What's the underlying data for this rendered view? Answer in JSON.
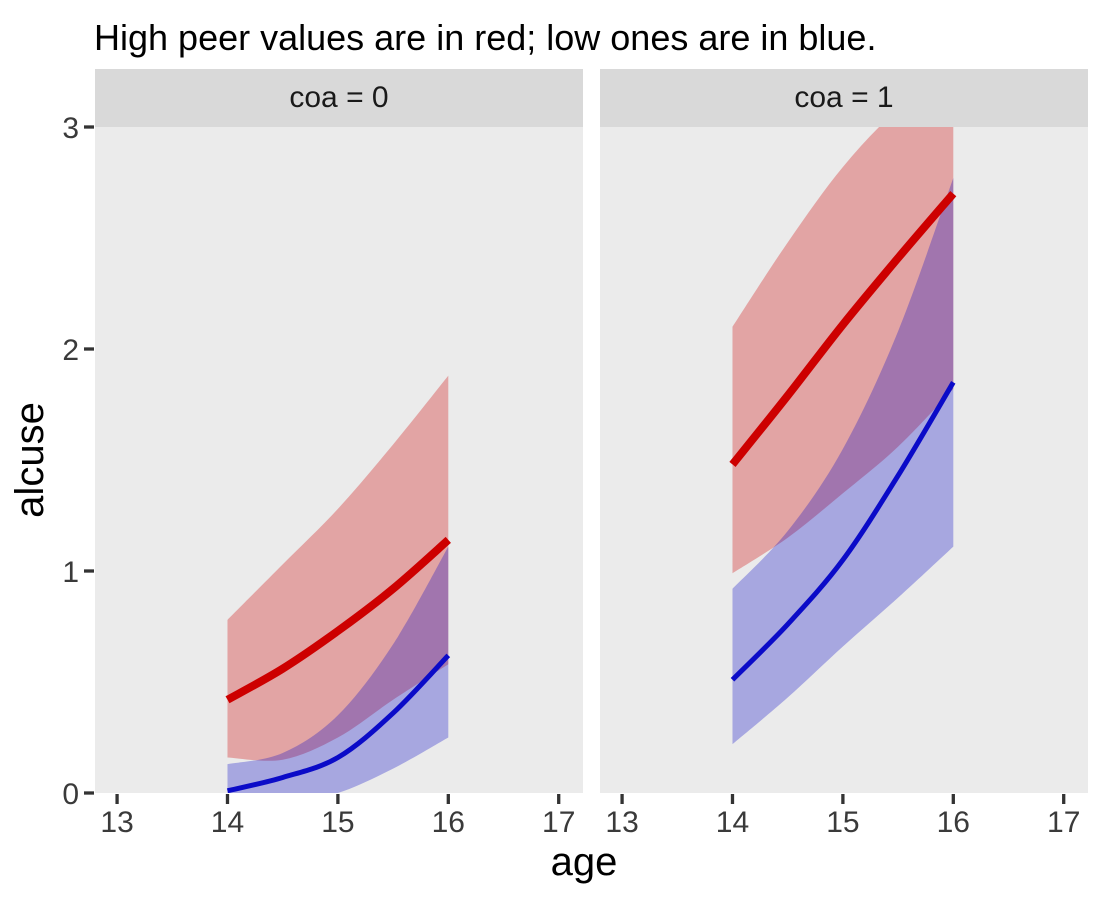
{
  "title": "High peer values are in red; low ones are in blue.",
  "colors": {
    "red_line": "#CD0000",
    "blue_line": "#0B0BC8",
    "ribbon_opacity": 0.3,
    "panel_bg": "#EBEBEB",
    "strip_bg": "#D9D9D9",
    "tick_text": "#3A3A3A",
    "tick_mark": "#333333"
  },
  "chart_data": {
    "type": "line",
    "title": "High peer values are in red; low ones are in blue.",
    "xlabel": "age",
    "ylabel": "alcuse",
    "xlim": [
      12.8,
      17.22
    ],
    "ylim": [
      0,
      3
    ],
    "x_ticks": [
      13,
      14,
      15,
      16,
      17
    ],
    "y_ticks": [
      0,
      1,
      2,
      3
    ],
    "grid": false,
    "legend_position": "none",
    "x": [
      14,
      14.5,
      15,
      15.5,
      16
    ],
    "facets": [
      {
        "label": "coa = 0",
        "series": [
          {
            "name": "high peer",
            "color_key": "red",
            "values": [
              0.42,
              0.56,
              0.73,
              0.92,
              1.14
            ],
            "ci_upper": [
              0.78,
              1.03,
              1.28,
              1.57,
              1.88
            ],
            "ci_lower": [
              0.16,
              0.15,
              0.25,
              0.42,
              0.58
            ]
          },
          {
            "name": "low peer",
            "color_key": "blue",
            "values": [
              0.01,
              0.07,
              0.16,
              0.36,
              0.62
            ],
            "ci_upper": [
              0.13,
              0.18,
              0.35,
              0.67,
              1.11
            ],
            "ci_lower": [
              -0.08,
              -0.05,
              0.0,
              0.11,
              0.25
            ]
          }
        ]
      },
      {
        "label": "coa = 1",
        "series": [
          {
            "name": "high peer",
            "color_key": "red",
            "values": [
              1.48,
              1.79,
              2.11,
              2.41,
              2.7
            ],
            "ci_upper": [
              2.1,
              2.48,
              2.82,
              3.08,
              3.25
            ],
            "ci_lower": [
              0.99,
              1.15,
              1.35,
              1.56,
              1.82
            ]
          },
          {
            "name": "low peer",
            "color_key": "blue",
            "values": [
              0.51,
              0.76,
              1.05,
              1.43,
              1.85
            ],
            "ci_upper": [
              0.92,
              1.18,
              1.55,
              2.08,
              2.77
            ],
            "ci_lower": [
              0.22,
              0.43,
              0.66,
              0.88,
              1.11
            ]
          }
        ]
      }
    ]
  }
}
